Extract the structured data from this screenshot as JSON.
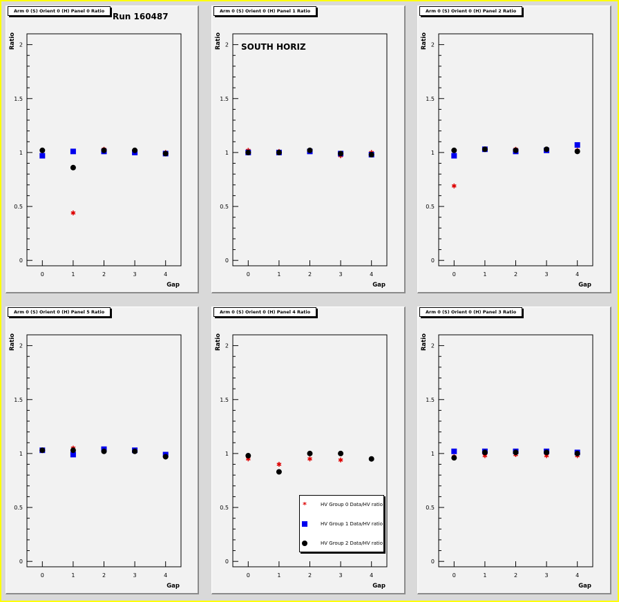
{
  "canvas": {
    "background": "#d9d9d9",
    "border_color": "#ffff00"
  },
  "run_label": "Run 160487",
  "side_label": "SOUTH HORIZ",
  "colors": {
    "group0": "#dd0000",
    "group1": "#0000ee",
    "group2": "#000000"
  },
  "legend": {
    "entries": [
      {
        "label": "HV Group 0 Data/HV ratio",
        "marker": "star",
        "color": "#dd0000"
      },
      {
        "label": "HV Group 1 Data/HV ratio",
        "marker": "square",
        "color": "#0000ee"
      },
      {
        "label": "HV Group 2 Data/HV ratio",
        "marker": "circle",
        "color": "#000000"
      }
    ]
  },
  "chart_data": [
    {
      "type": "scatter",
      "title": "Arm 0 (S) Orient 0 (H) Panel 0 Ratio",
      "xlabel": "Gap",
      "ylabel": "Ratio",
      "xlim": [
        -0.5,
        4.5
      ],
      "ylim": [
        -0.05,
        2.1
      ],
      "x_ticks": [
        "0",
        "1",
        "2",
        "3",
        "4"
      ],
      "y_ticks": [
        "0",
        "0.5",
        "1",
        "1.5",
        "2"
      ],
      "categories": [
        0,
        1,
        2,
        3,
        4
      ],
      "series": [
        {
          "name": "HV Group 0 Data/HV ratio",
          "values": [
            1.02,
            0.44,
            1.03,
            1.02,
            1.0
          ]
        },
        {
          "name": "HV Group 1 Data/HV ratio",
          "values": [
            0.97,
            1.01,
            1.01,
            1.0,
            0.99
          ]
        },
        {
          "name": "HV Group 2 Data/HV ratio",
          "values": [
            1.02,
            0.86,
            1.02,
            1.02,
            0.99
          ]
        }
      ]
    },
    {
      "type": "scatter",
      "title": "Arm 0 (S) Orient 0 (H) Panel 1 Ratio",
      "xlabel": "Gap",
      "ylabel": "Ratio",
      "xlim": [
        -0.5,
        4.5
      ],
      "ylim": [
        -0.05,
        2.1
      ],
      "x_ticks": [
        "0",
        "1",
        "2",
        "3",
        "4"
      ],
      "y_ticks": [
        "0",
        "0.5",
        "1",
        "1.5",
        "2"
      ],
      "categories": [
        0,
        1,
        2,
        3,
        4
      ],
      "series": [
        {
          "name": "HV Group 0 Data/HV ratio",
          "values": [
            1.02,
            1.01,
            1.02,
            0.97,
            1.0
          ]
        },
        {
          "name": "HV Group 1 Data/HV ratio",
          "values": [
            1.0,
            1.0,
            1.01,
            0.99,
            0.98
          ]
        },
        {
          "name": "HV Group 2 Data/HV ratio",
          "values": [
            1.0,
            1.0,
            1.02,
            0.99,
            0.98
          ]
        }
      ]
    },
    {
      "type": "scatter",
      "title": "Arm 0 (S) Orient 0 (H) Panel 2 Ratio",
      "xlabel": "Gap",
      "ylabel": "Ratio",
      "xlim": [
        -0.5,
        4.5
      ],
      "ylim": [
        -0.05,
        2.1
      ],
      "x_ticks": [
        "0",
        "1",
        "2",
        "3",
        "4"
      ],
      "y_ticks": [
        "0",
        "0.5",
        "1",
        "1.5",
        "2"
      ],
      "categories": [
        0,
        1,
        2,
        3,
        4
      ],
      "series": [
        {
          "name": "HV Group 0 Data/HV ratio",
          "values": [
            0.69,
            1.03,
            1.03,
            1.03,
            1.02
          ]
        },
        {
          "name": "HV Group 1 Data/HV ratio",
          "values": [
            0.97,
            1.03,
            1.01,
            1.02,
            1.07
          ]
        },
        {
          "name": "HV Group 2 Data/HV ratio",
          "values": [
            1.02,
            1.03,
            1.02,
            1.03,
            1.01
          ]
        }
      ]
    },
    {
      "type": "scatter",
      "title": "Arm 0 (S) Orient 0 (H) Panel 5 Ratio",
      "xlabel": "Gap",
      "ylabel": "Ratio",
      "xlim": [
        -0.5,
        4.5
      ],
      "ylim": [
        -0.05,
        2.1
      ],
      "x_ticks": [
        "0",
        "1",
        "2",
        "3",
        "4"
      ],
      "y_ticks": [
        "0",
        "0.5",
        "1",
        "1.5",
        "2"
      ],
      "categories": [
        0,
        1,
        2,
        3,
        4
      ],
      "series": [
        {
          "name": "HV Group 0 Data/HV ratio",
          "values": [
            1.03,
            1.05,
            1.03,
            1.03,
            0.98
          ]
        },
        {
          "name": "HV Group 1 Data/HV ratio",
          "values": [
            1.03,
            0.99,
            1.04,
            1.03,
            0.99
          ]
        },
        {
          "name": "HV Group 2 Data/HV ratio",
          "values": [
            1.03,
            1.03,
            1.02,
            1.02,
            0.97
          ]
        }
      ]
    },
    {
      "type": "scatter",
      "title": "Arm 0 (S) Orient 0 (H) Panel 4 Ratio",
      "xlabel": "Gap",
      "ylabel": "Ratio",
      "xlim": [
        -0.5,
        4.5
      ],
      "ylim": [
        -0.05,
        2.1
      ],
      "x_ticks": [
        "0",
        "1",
        "2",
        "3",
        "4"
      ],
      "y_ticks": [
        "0",
        "0.5",
        "1",
        "1.5",
        "2"
      ],
      "categories": [
        0,
        1,
        2,
        3,
        4
      ],
      "series": [
        {
          "name": "HV Group 0 Data/HV ratio",
          "values": [
            0.95,
            0.9,
            0.95,
            0.94,
            0.95
          ]
        },
        {
          "name": "HV Group 1 Data/HV ratio",
          "values": [
            null,
            null,
            null,
            null,
            null
          ]
        },
        {
          "name": "HV Group 2 Data/HV ratio",
          "values": [
            0.98,
            0.83,
            1.0,
            1.0,
            0.95
          ]
        }
      ],
      "legend": true
    },
    {
      "type": "scatter",
      "title": "Arm 0 (S) Orient 0 (H) Panel 3 Ratio",
      "xlabel": "Gap",
      "ylabel": "Ratio",
      "xlim": [
        -0.5,
        4.5
      ],
      "ylim": [
        -0.05,
        2.1
      ],
      "x_ticks": [
        "0",
        "1",
        "2",
        "3",
        "4"
      ],
      "y_ticks": [
        "0",
        "0.5",
        "1",
        "1.5",
        "2"
      ],
      "categories": [
        0,
        1,
        2,
        3,
        4
      ],
      "series": [
        {
          "name": "HV Group 0 Data/HV ratio",
          "values": [
            0.97,
            0.98,
            0.99,
            0.98,
            0.98
          ]
        },
        {
          "name": "HV Group 1 Data/HV ratio",
          "values": [
            1.02,
            1.02,
            1.02,
            1.02,
            1.01
          ]
        },
        {
          "name": "HV Group 2 Data/HV ratio",
          "values": [
            0.96,
            1.01,
            1.01,
            1.01,
            1.0
          ]
        }
      ]
    }
  ]
}
